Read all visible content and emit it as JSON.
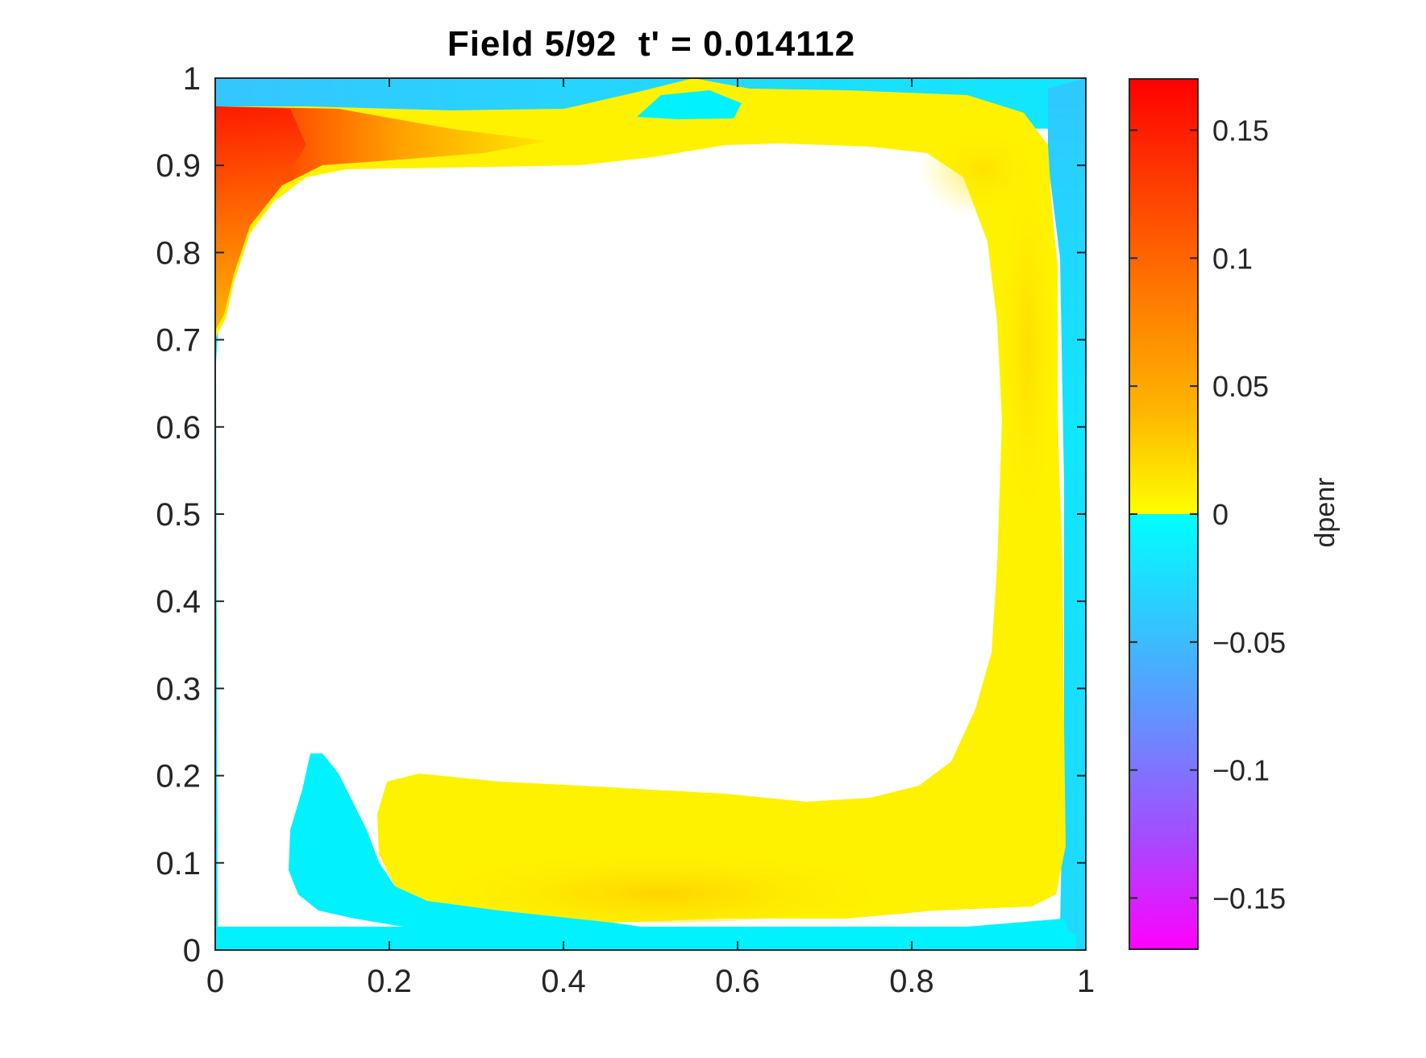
{
  "chart_data": {
    "type": "heatmap",
    "title": "Field 5/92  t' = 0.014112",
    "xlabel": "",
    "ylabel": "",
    "xlim": [
      0,
      1
    ],
    "ylim": [
      0,
      1
    ],
    "x_ticks": [
      "0",
      "0.2",
      "0.4",
      "0.6",
      "0.8",
      "1"
    ],
    "x_tick_values": [
      0,
      0.2,
      0.4,
      0.6,
      0.8,
      1
    ],
    "y_ticks": [
      "0",
      "0.1",
      "0.2",
      "0.3",
      "0.4",
      "0.5",
      "0.6",
      "0.7",
      "0.8",
      "0.9",
      "1"
    ],
    "y_tick_values": [
      0,
      0.1,
      0.2,
      0.3,
      0.4,
      0.5,
      0.6,
      0.7,
      0.8,
      0.9,
      1
    ],
    "grid": false,
    "colorbar": {
      "label": "dpenr",
      "range": [
        -0.17,
        0.17
      ],
      "tick_labels": [
        "0.15",
        "0.1",
        "0.05",
        "0",
        "−0.05",
        "−0.1",
        "−0.15"
      ],
      "tick_values": [
        0.15,
        0.1,
        0.05,
        0,
        -0.05,
        -0.1,
        -0.15
      ],
      "colors_negative": [
        "#ff00ff",
        "#b040ff",
        "#7080ff",
        "#40b0ff",
        "#00ffff"
      ],
      "colors_positive": [
        "#ffff00",
        "#ffd000",
        "#ff9000",
        "#ff5000",
        "#ff0000"
      ]
    },
    "regions": [
      {
        "sign": "positive",
        "description": "large yellow band around the right and bottom of the central white region",
        "value_range": [
          0,
          0.03
        ],
        "color": "#ffee00"
      },
      {
        "sign": "positive",
        "description": "red-orange wedge at upper-left corner",
        "value_range": [
          0.03,
          0.16
        ],
        "color": "#ff2a00"
      },
      {
        "sign": "negative",
        "description": "cyan bands along top, right and bottom edges",
        "value_range": [
          -0.03,
          0
        ],
        "color": "#00f0ff"
      },
      {
        "sign": "none",
        "description": "central white region (no data)",
        "color": "#ffffff"
      }
    ]
  }
}
